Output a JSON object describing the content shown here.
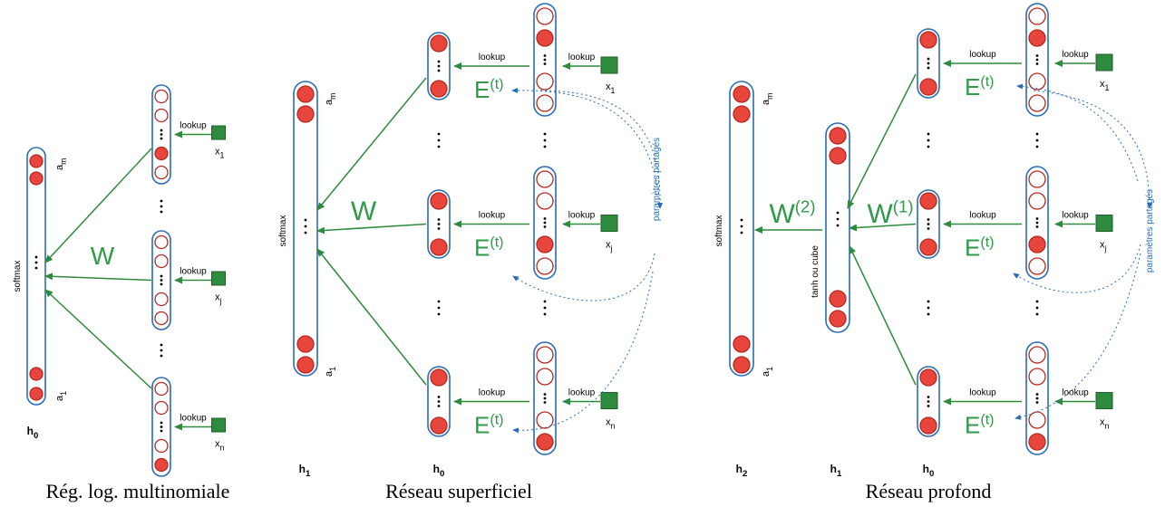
{
  "colors": {
    "neuron_fill": "#e8453c",
    "neuron_stroke": "#b42b23",
    "layer_stroke": "#2a6db5",
    "arrow": "#2e8b3e",
    "input_square": "#2e8b3e",
    "shared_label": "#2a6db5"
  },
  "panels": [
    {
      "caption": "Rég. log. multinomiale",
      "output_layer": {
        "name": "h",
        "sub": "0",
        "activation": "softmax",
        "top_label": "a",
        "top_sub": "m",
        "bottom_label": "a",
        "bottom_sub": "1"
      },
      "weight_label": "W",
      "lookup_label": "lookup",
      "inputs": [
        {
          "name": "x",
          "sub": "1"
        },
        {
          "name": "x",
          "sub": "j"
        },
        {
          "name": "x",
          "sub": "n"
        }
      ]
    },
    {
      "caption": "Réseau superficiel",
      "output_layer": {
        "name": "h",
        "sub": "1",
        "activation": "softmax",
        "top_label": "a",
        "top_sub": "m",
        "bottom_label": "a",
        "bottom_sub": "1"
      },
      "embedding_layer": {
        "name": "h",
        "sub": "0"
      },
      "weight_label": "W",
      "embedding_label": "E",
      "embedding_sup": "(t)",
      "lookup_label": "lookup",
      "shared_label": "paramètres partagés",
      "inputs": [
        {
          "name": "x",
          "sub": "1"
        },
        {
          "name": "x",
          "sub": "j"
        },
        {
          "name": "x",
          "sub": "n"
        }
      ]
    },
    {
      "caption": "Réseau profond",
      "output_layer": {
        "name": "h",
        "sub": "2",
        "activation": "softmax",
        "top_label": "a",
        "top_sub": "m",
        "bottom_label": "a",
        "bottom_sub": "1"
      },
      "hidden_layer": {
        "name": "h",
        "sub": "1",
        "activation": "tanh ou cube"
      },
      "embedding_layer": {
        "name": "h",
        "sub": "0"
      },
      "weight2_label": "W",
      "weight2_sup": "(2)",
      "weight1_label": "W",
      "weight1_sup": "(1)",
      "embedding_label": "E",
      "embedding_sup": "(t)",
      "lookup_label": "lookup",
      "shared_label": "paramètres partagés",
      "inputs": [
        {
          "name": "x",
          "sub": "1"
        },
        {
          "name": "x",
          "sub": "j"
        },
        {
          "name": "x",
          "sub": "n"
        }
      ]
    }
  ]
}
